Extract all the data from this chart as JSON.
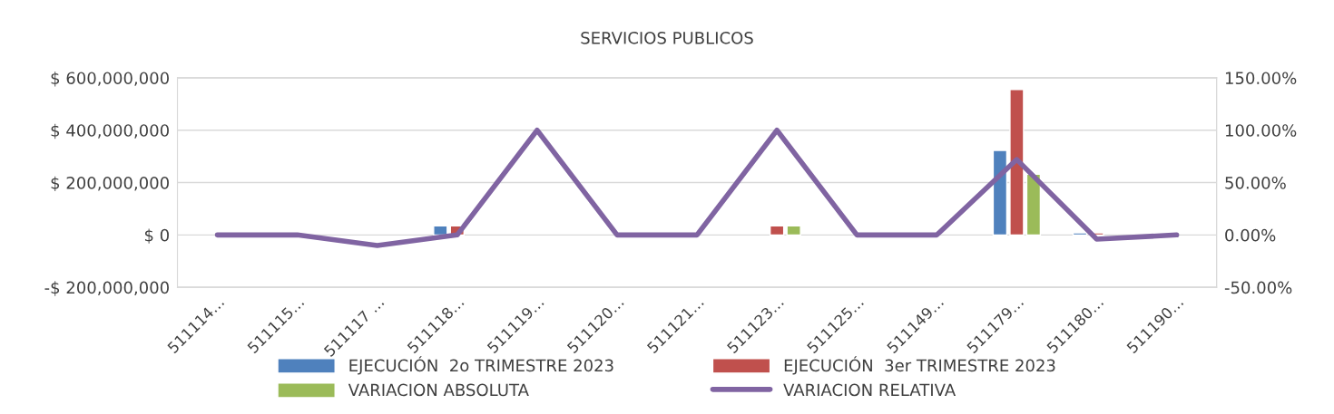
{
  "chart_data": {
    "type": "bar",
    "title": "SERVICIOS PUBLICOS",
    "categories": [
      "511114…",
      "511115…",
      "511117 …",
      "511118…",
      "511119…",
      "511120…",
      "511121…",
      "511123…",
      "511125…",
      "511149…",
      "511179…",
      "511180…",
      "511190…"
    ],
    "series": [
      {
        "name": "EJECUCIÓN  2o TRIMESTRE 2023",
        "color": "#4f81bd",
        "values": [
          null,
          null,
          null,
          35000000,
          null,
          null,
          null,
          null,
          null,
          null,
          323000000,
          8000000,
          null
        ]
      },
      {
        "name": "EJECUCIÓN  3er TRIMESTRE 2023",
        "color": "#c0504d",
        "values": [
          null,
          null,
          null,
          35000000,
          null,
          null,
          null,
          35000000,
          null,
          null,
          555000000,
          8000000,
          null
        ]
      },
      {
        "name": "VARIACION ABSOLUTA",
        "color": "#9bbb59",
        "values": [
          null,
          null,
          null,
          null,
          null,
          null,
          null,
          35000000,
          null,
          null,
          232000000,
          null,
          null
        ]
      },
      {
        "name": "VARIACION RELATIVA",
        "color": "#8064a2",
        "type": "line",
        "axis": "y2",
        "values": [
          0,
          0,
          -10,
          0,
          100,
          0,
          0,
          100,
          0,
          0,
          72,
          -4,
          0
        ]
      }
    ],
    "ylim": [
      -200000000,
      600000000
    ],
    "yticks": [
      {
        "value": -200000000,
        "label": "-$ 200,000,000"
      },
      {
        "value": 0,
        "label": "$ 0"
      },
      {
        "value": 200000000,
        "label": "$ 200,000,000"
      },
      {
        "value": 400000000,
        "label": "$ 400,000,000"
      },
      {
        "value": 600000000,
        "label": "$ 600,000,000"
      }
    ],
    "y2lim": [
      -50,
      150
    ],
    "y2ticks": [
      {
        "value": -50,
        "label": "-50.00%"
      },
      {
        "value": 0,
        "label": "0.00%"
      },
      {
        "value": 50,
        "label": "50.00%"
      },
      {
        "value": 100,
        "label": "100.00%"
      },
      {
        "value": 150,
        "label": "150.00%"
      }
    ],
    "grid": "y",
    "legend": "bottom",
    "marker": "none"
  }
}
